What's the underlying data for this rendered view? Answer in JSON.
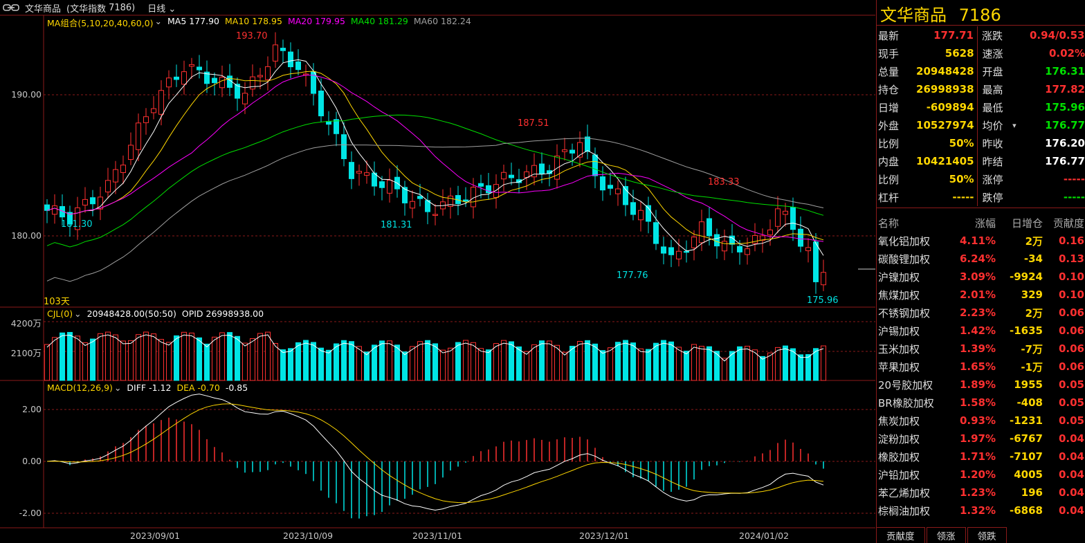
{
  "header": {
    "name": "文华商品",
    "paren": "(文华指数",
    "code": "7186)",
    "period": "日线"
  },
  "main": {
    "ma_legend": [
      {
        "label": "MA组合(5,10,20,40,60,0)",
        "color": "#ffd700"
      },
      {
        "label": "MA5 177.90",
        "color": "#ffffff"
      },
      {
        "label": "MA10 178.95",
        "color": "#ffd700"
      },
      {
        "label": "MA20 179.95",
        "color": "#ff00ff"
      },
      {
        "label": "MA40 181.29",
        "color": "#00e000"
      },
      {
        "label": "MA60 182.24",
        "color": "#a0a0a0"
      }
    ],
    "y_ticks": [
      "190.00",
      "180.00"
    ],
    "annotations": [
      {
        "text": "193.70",
        "color": "#ff3030"
      },
      {
        "text": "187.51",
        "color": "#ff3030"
      },
      {
        "text": "183.33",
        "color": "#ff3030"
      },
      {
        "text": "181.30",
        "color": "#00e0e0"
      },
      {
        "text": "181.31",
        "color": "#00e0e0"
      },
      {
        "text": "177.76",
        "color": "#00e0e0"
      },
      {
        "text": "175.96",
        "color": "#00e0e0"
      }
    ],
    "days_label": "103天"
  },
  "volume": {
    "legend": [
      {
        "label": "CJL(0)",
        "color": "#ffd700"
      },
      {
        "label": "20948428.00(50:50)",
        "color": "#ffffff"
      },
      {
        "label": "OPID 26998938.00",
        "color": "#ffffff"
      }
    ],
    "y_ticks": [
      "4200万",
      "2100万"
    ]
  },
  "macd": {
    "legend": [
      {
        "label": "MACD(12,26,9)",
        "color": "#ffd700"
      },
      {
        "label": "DIFF -1.12",
        "color": "#ffffff"
      },
      {
        "label": "DEA -0.70",
        "color": "#ffd700"
      },
      {
        "label": "-0.85",
        "color": "#ffffff"
      }
    ],
    "y_ticks": [
      "2.00",
      "0.00",
      "-2.00"
    ]
  },
  "x_dates": [
    "2023/09/01",
    "2023/10/09",
    "2023/11/01",
    "2023/12/01",
    "2024/01/02"
  ],
  "quote": {
    "title_name": "文华商品",
    "title_code": "7186",
    "rows": [
      {
        "k": "最新",
        "v": "177.71",
        "vc": "#ff3030",
        "k2": "涨跌",
        "v2": "0.94/0.53%",
        "v2c": "#ff3030"
      },
      {
        "k": "现手",
        "v": "5628",
        "vc": "#ffd700",
        "k2": "速涨",
        "v2": "0.02%",
        "v2c": "#ff3030"
      },
      {
        "k": "总量",
        "v": "20948428",
        "vc": "#ffd700",
        "k2": "开盘",
        "v2": "176.31",
        "v2c": "#00e000"
      },
      {
        "k": "持仓",
        "v": "26998938",
        "vc": "#ffd700",
        "k2": "最高",
        "v2": "177.82",
        "v2c": "#ff3030"
      },
      {
        "k": "日增",
        "v": "-609894",
        "vc": "#ffd700",
        "k2": "最低",
        "v2": "175.96",
        "v2c": "#00e000"
      },
      {
        "k": "外盘",
        "v": "10527974",
        "vc": "#ffd700",
        "k2": "均价",
        "v2": "176.77",
        "v2c": "#00e000"
      },
      {
        "k": "比例",
        "v": "50%",
        "vc": "#ffd700",
        "k2": "昨收",
        "v2": "176.20",
        "v2c": "#ffffff"
      },
      {
        "k": "内盘",
        "v": "10421405",
        "vc": "#ffd700",
        "k2": "昨结",
        "v2": "176.77",
        "v2c": "#ffffff"
      },
      {
        "k": "比例",
        "v": "50%",
        "vc": "#ffd700",
        "k2": "涨停",
        "v2": "-----",
        "v2c": "#ff3030"
      },
      {
        "k": "杠杆",
        "v": "-----",
        "vc": "#ffd700",
        "k2": "跌停",
        "v2": "-----",
        "v2c": "#00e000"
      }
    ]
  },
  "contrib": {
    "headers": [
      "名称",
      "涨幅",
      "日增仓",
      "贡献度"
    ],
    "rows": [
      {
        "n": "氧化铝加权",
        "p": "4.11%",
        "d": "2万",
        "c": "0.16"
      },
      {
        "n": "碳酸锂加权",
        "p": "6.24%",
        "d": "-34",
        "c": "0.13"
      },
      {
        "n": "沪镍加权",
        "p": "3.09%",
        "d": "-9924",
        "c": "0.10"
      },
      {
        "n": "焦煤加权",
        "p": "2.01%",
        "d": "329",
        "c": "0.10"
      },
      {
        "n": "不锈钢加权",
        "p": "2.23%",
        "d": "2万",
        "c": "0.06"
      },
      {
        "n": "沪锡加权",
        "p": "1.42%",
        "d": "-1635",
        "c": "0.06"
      },
      {
        "n": "玉米加权",
        "p": "1.39%",
        "d": "-7万",
        "c": "0.06"
      },
      {
        "n": "苹果加权",
        "p": "1.65%",
        "d": "-1万",
        "c": "0.06"
      },
      {
        "n": "20号胶加权",
        "p": "1.89%",
        "d": "1955",
        "c": "0.05"
      },
      {
        "n": "BR橡胶加权",
        "p": "1.58%",
        "d": "-408",
        "c": "0.05"
      },
      {
        "n": "焦炭加权",
        "p": "0.93%",
        "d": "-1231",
        "c": "0.05"
      },
      {
        "n": "淀粉加权",
        "p": "1.97%",
        "d": "-6767",
        "c": "0.04"
      },
      {
        "n": "橡胶加权",
        "p": "1.71%",
        "d": "-7107",
        "c": "0.04"
      },
      {
        "n": "沪铅加权",
        "p": "1.20%",
        "d": "4005",
        "c": "0.04"
      },
      {
        "n": "苯乙烯加权",
        "p": "1.23%",
        "d": "196",
        "c": "0.04"
      },
      {
        "n": "棕榈油加权",
        "p": "1.32%",
        "d": "-6868",
        "c": "0.04"
      }
    ]
  },
  "tabs": [
    "贡献度",
    "领涨",
    "领跌"
  ],
  "colors": {
    "up": "#ff3030",
    "down": "#00e5e5",
    "grid": "#8b1a1a"
  }
}
